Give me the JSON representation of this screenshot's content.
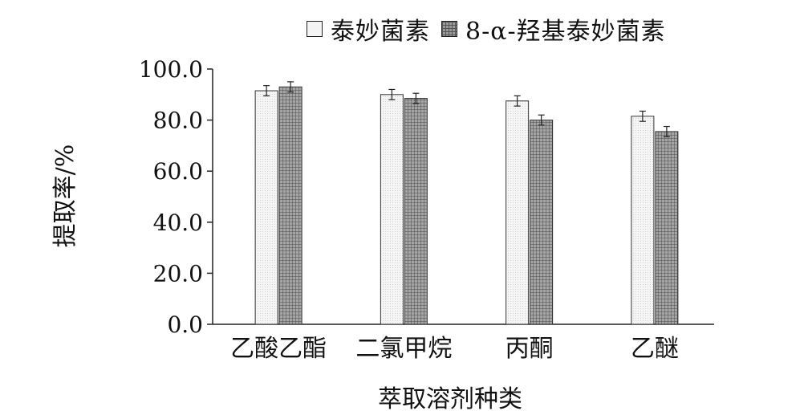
{
  "chart_data": {
    "type": "bar",
    "categories": [
      "乙酸乙酯",
      "二氯甲烷",
      "丙酮",
      "乙醚"
    ],
    "series": [
      {
        "name": "泰妙菌素",
        "values": [
          91.5,
          90.0,
          87.5,
          81.5
        ],
        "errors": [
          2.0,
          2.0,
          2.0,
          2.0
        ],
        "color": "#f2f2f2",
        "pattern": "dotted"
      },
      {
        "name": "8-α-羟基泰妙菌素",
        "values": [
          93.0,
          88.5,
          80.0,
          75.5
        ],
        "errors": [
          2.0,
          2.0,
          2.0,
          2.0
        ],
        "color": "#9a9a9a",
        "pattern": "grid"
      }
    ],
    "xlabel": "萃取溶剂种类",
    "ylabel": "提取率/%",
    "ylim": [
      0,
      100
    ],
    "yticks": [
      "0.0",
      "20.0",
      "40.0",
      "60.0",
      "80.0",
      "100.0"
    ],
    "legend_position": "top"
  }
}
